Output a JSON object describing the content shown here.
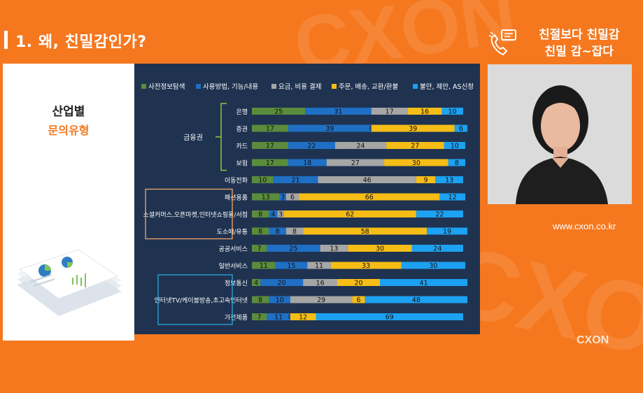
{
  "slide": {
    "title": "1. 왜, 친밀감인가?",
    "tagline_line1": "친절보다 친밀감",
    "tagline_line2": "친밀 감~잡다",
    "left_heading": "산업별",
    "left_subheading": "문의유형",
    "url": "www.cxon.co.kr",
    "brand": "CXON",
    "background_word": "CXON"
  },
  "colors": {
    "background": "#f5781f",
    "chart_bg": "#1f3350",
    "green": "#5b8c3c",
    "blue": "#1f6fc5",
    "gray": "#a6a6a6",
    "yellow": "#f6bd16",
    "light_blue": "#1da1f2"
  },
  "chart_data": {
    "type": "bar",
    "orientation": "horizontal",
    "stacked": true,
    "normalized_to": 100,
    "legend_position": "top",
    "categories": [
      "은행",
      "증권",
      "카드",
      "보험",
      "이동전화",
      "패션용품",
      "소셜커머스,오픈마켓,인터넷쇼핑몰/서점",
      "도소매/유통",
      "공공서비스",
      "일반서비스",
      "정보통신",
      "인터넷TV/케이블방송,초고속인터넷",
      "가전제품"
    ],
    "series": [
      {
        "name": "사전정보탐색",
        "color": "#5b8c3c",
        "values": [
          25,
          17,
          17,
          17,
          10,
          13,
          8,
          8,
          7,
          11,
          4,
          8,
          7
        ]
      },
      {
        "name": "사용방법, 기능/내용",
        "color": "#1f6fc5",
        "values": [
          31,
          39,
          22,
          18,
          21,
          3,
          4,
          8,
          25,
          15,
          20,
          10,
          11
        ]
      },
      {
        "name": "요금, 비용 결제",
        "color": "#a6a6a6",
        "values": [
          17,
          0,
          24,
          27,
          46,
          6,
          3,
          8,
          13,
          11,
          16,
          29,
          0
        ]
      },
      {
        "name": "주문, 배송, 교환/환불",
        "color": "#f6bd16",
        "values": [
          16,
          39,
          27,
          30,
          9,
          66,
          62,
          58,
          30,
          33,
          20,
          6,
          12
        ]
      },
      {
        "name": "불만, 제안, AS신청",
        "color": "#1da1f2",
        "values": [
          10,
          6,
          10,
          8,
          13,
          12,
          22,
          19,
          24,
          30,
          41,
          48,
          69
        ]
      }
    ],
    "groups": [
      {
        "label": "금융권",
        "members": [
          "은행",
          "증권",
          "카드",
          "보험"
        ],
        "bracket_color": "#8dc63f"
      },
      {
        "label": "",
        "members": [
          "패션용품",
          "소셜커머스,오픈마켓,인터넷쇼핑몰/서점",
          "도소매/유통"
        ],
        "bracket_color": "#f5a46b"
      },
      {
        "label": "",
        "members": [
          "정보통신",
          "인터넷TV/케이블방송,초고속인터넷",
          "가전제품"
        ],
        "bracket_color": "#29a8e0"
      }
    ]
  }
}
